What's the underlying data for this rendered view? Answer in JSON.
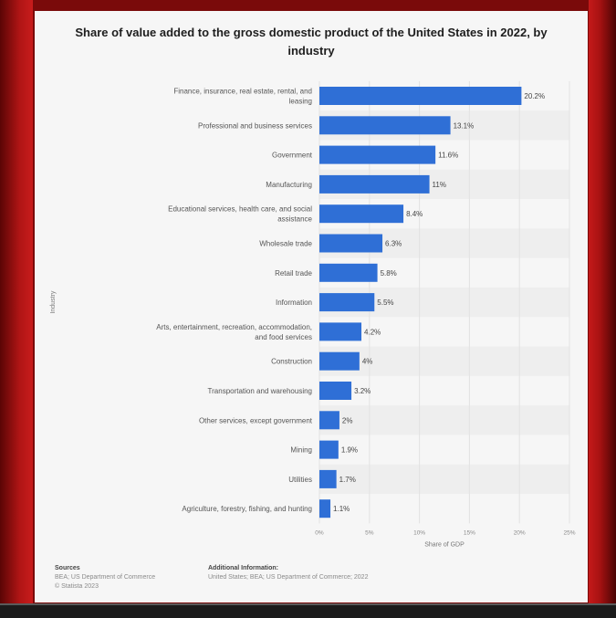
{
  "title": "Share of value added to the gross domestic product of the United States in 2022, by industry",
  "chart_data": {
    "type": "bar",
    "orientation": "horizontal",
    "title": "Share of value added to the gross domestic product of the United States in 2022, by industry",
    "xlabel": "Share of GDP",
    "ylabel": "Industry",
    "xlim": [
      0,
      25
    ],
    "x_ticks": [
      "0%",
      "5%",
      "10%",
      "15%",
      "20%",
      "25%"
    ],
    "categories": [
      [
        "Finance, insurance, real estate, rental, and",
        "leasing"
      ],
      [
        "Professional and business services"
      ],
      [
        "Government"
      ],
      [
        "Manufacturing"
      ],
      [
        "Educational services, health care, and social",
        "assistance"
      ],
      [
        "Wholesale trade"
      ],
      [
        "Retail trade"
      ],
      [
        "Information"
      ],
      [
        "Arts, entertainment, recreation, accommodation,",
        "and food services"
      ],
      [
        "Construction"
      ],
      [
        "Transportation and warehousing"
      ],
      [
        "Other services, except government"
      ],
      [
        "Mining"
      ],
      [
        "Utilities"
      ],
      [
        "Agriculture, forestry, fishing, and hunting"
      ]
    ],
    "values": [
      20.2,
      13.1,
      11.6,
      11,
      8.4,
      6.3,
      5.8,
      5.5,
      4.2,
      4,
      3.2,
      2,
      1.9,
      1.7,
      1.1
    ],
    "value_labels": [
      "20.2%",
      "13.1%",
      "11.6%",
      "11%",
      "8.4%",
      "6.3%",
      "5.8%",
      "5.5%",
      "4.2%",
      "4%",
      "3.2%",
      "2%",
      "1.9%",
      "1.7%",
      "1.1%"
    ],
    "bar_color": "#2f6fd6",
    "grid": true,
    "legend": "none"
  },
  "footer": {
    "sources_heading": "Sources",
    "sources_lines": [
      "BEA; US Department of Commerce",
      "© Statista 2023"
    ],
    "additional_heading": "Additional Information:",
    "additional_line": "United States; BEA; US Department of Commerce; 2022"
  }
}
